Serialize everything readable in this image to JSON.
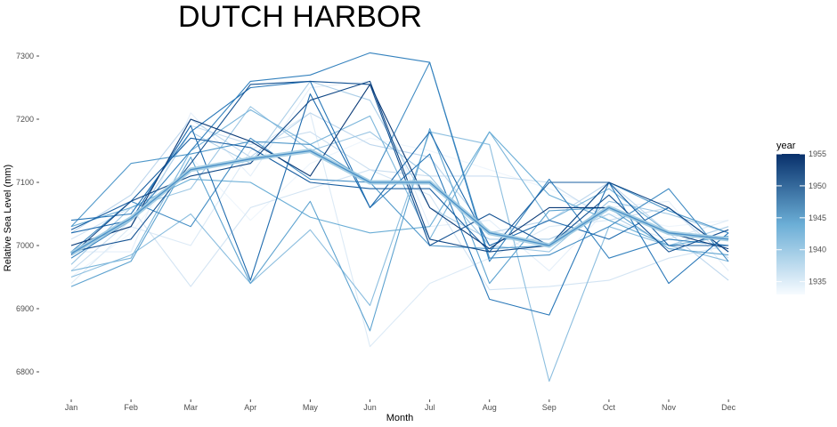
{
  "chart_data": {
    "type": "line",
    "title": "DUTCH HARBOR",
    "xlabel": "Month",
    "ylabel": "Relative Sea Level (mm)",
    "categories": [
      "Jan",
      "Feb",
      "Mar",
      "Apr",
      "May",
      "Jun",
      "Jul",
      "Aug",
      "Sep",
      "Oct",
      "Nov",
      "Dec"
    ],
    "ylim": [
      6760,
      7330
    ],
    "yticks": [
      6800,
      6900,
      7000,
      7100,
      7200,
      7300
    ],
    "ytick_labels": [
      "6800",
      "6900",
      "7000",
      "7100",
      "7200",
      "7300"
    ],
    "grid": false,
    "legend": {
      "title": "year",
      "position": "right",
      "type": "colorbar",
      "range": [
        1933,
        1955
      ],
      "ticks": [
        1935,
        1940,
        1945,
        1950,
        1955
      ],
      "tick_labels": [
        "1935",
        "1940",
        "1945",
        "1950",
        "1955"
      ],
      "color_low": "#f7fbff",
      "color_high": "#08306b"
    },
    "mean_series": {
      "values": [
        6987,
        7043,
        7120,
        7137,
        7150,
        7100,
        7100,
        7020,
        7000,
        7060,
        7020,
        7010
      ]
    },
    "series": [
      {
        "year": 1934,
        "values": [
          6950,
          7020,
          7140,
          7040,
          7130,
          7170,
          7150,
          7120,
          7090,
          7050,
          7030,
          7040
        ]
      },
      {
        "year": 1935,
        "values": [
          6990,
          6990,
          7210,
          7110,
          7250,
          7260,
          7030,
          7040,
          6960,
          7060,
          7070,
          6960
        ]
      },
      {
        "year": 1936,
        "values": [
          6940,
          7030,
          7000,
          7150,
          7210,
          6840,
          6940,
          6980,
          7030,
          7040,
          7010,
          7040
        ]
      },
      {
        "year": 1937,
        "values": [
          7010,
          7060,
          6935,
          7060,
          7090,
          7120,
          7080,
          6930,
          6935,
          6945,
          6980,
          7000
        ]
      },
      {
        "year": 1938,
        "values": [
          6960,
          7040,
          7190,
          7160,
          7180,
          7120,
          7110,
          7110,
          7100,
          7040,
          7060,
          6980
        ]
      },
      {
        "year": 1939,
        "values": [
          7020,
          7080,
          7200,
          7140,
          7210,
          7160,
          7140,
          7020,
          7040,
          7100,
          7020,
          6945
        ]
      },
      {
        "year": 1940,
        "values": [
          7000,
          7030,
          7180,
          7130,
          7260,
          7230,
          7060,
          7010,
          7010,
          7050,
          7000,
          7030
        ]
      },
      {
        "year": 1941,
        "values": [
          6970,
          7060,
          7090,
          7220,
          7150,
          7180,
          7110,
          7000,
          6990,
          7070,
          7050,
          7020
        ]
      },
      {
        "year": 1942,
        "values": [
          6950,
          6985,
          7050,
          6940,
          7025,
          6905,
          7180,
          7160,
          6785,
          7030,
          7000,
          6975
        ]
      },
      {
        "year": 1943,
        "values": [
          6960,
          6980,
          7150,
          7215,
          7160,
          7205,
          7010,
          7180,
          7040,
          7090,
          7020,
          7010
        ]
      },
      {
        "year": 1944,
        "values": [
          7030,
          7060,
          7105,
          7100,
          7045,
          7020,
          7030,
          7180,
          7080,
          7040,
          7000,
          7015
        ]
      },
      {
        "year": 1945,
        "values": [
          6935,
          6975,
          7140,
          6940,
          7070,
          6865,
          7185,
          6940,
          7055,
          7060,
          6995,
          6985
        ]
      },
      {
        "year": 1946,
        "values": [
          7030,
          7130,
          7145,
          7165,
          7160,
          7100,
          7000,
          6995,
          7000,
          7100,
          7055,
          7020
        ]
      },
      {
        "year": 1947,
        "values": [
          6990,
          7070,
          7030,
          7170,
          7105,
          7100,
          7290,
          6980,
          6985,
          7030,
          7090,
          6975
        ]
      },
      {
        "year": 1948,
        "values": [
          6980,
          7040,
          7150,
          7260,
          7270,
          7305,
          7290,
          6975,
          7105,
          6980,
          7010,
          7000
        ]
      },
      {
        "year": 1949,
        "values": [
          7040,
          7050,
          7180,
          7250,
          7260,
          7060,
          7145,
          6915,
          6890,
          7100,
          6940,
          7020
        ]
      },
      {
        "year": 1950,
        "values": [
          7020,
          7040,
          7190,
          6945,
          7240,
          7060,
          7180,
          7000,
          7040,
          7010,
          7060,
          6990
        ]
      },
      {
        "year": 1951,
        "values": [
          7025,
          7070,
          7170,
          7155,
          7100,
          7090,
          7090,
          6990,
          7100,
          7100,
          7000,
          7000
        ]
      },
      {
        "year": 1952,
        "values": [
          6990,
          7010,
          7130,
          7255,
          7260,
          7255,
          7000,
          7050,
          7000,
          7080,
          6990,
          7025
        ]
      },
      {
        "year": 1953,
        "values": [
          6985,
          7070,
          7110,
          7130,
          7230,
          7260,
          7010,
          6990,
          7000,
          7100,
          7060,
          6990
        ]
      },
      {
        "year": 1954,
        "values": [
          7000,
          7030,
          7200,
          7165,
          7110,
          7255,
          7060,
          6995,
          7060,
          7060,
          7020,
          6995
        ]
      }
    ]
  }
}
